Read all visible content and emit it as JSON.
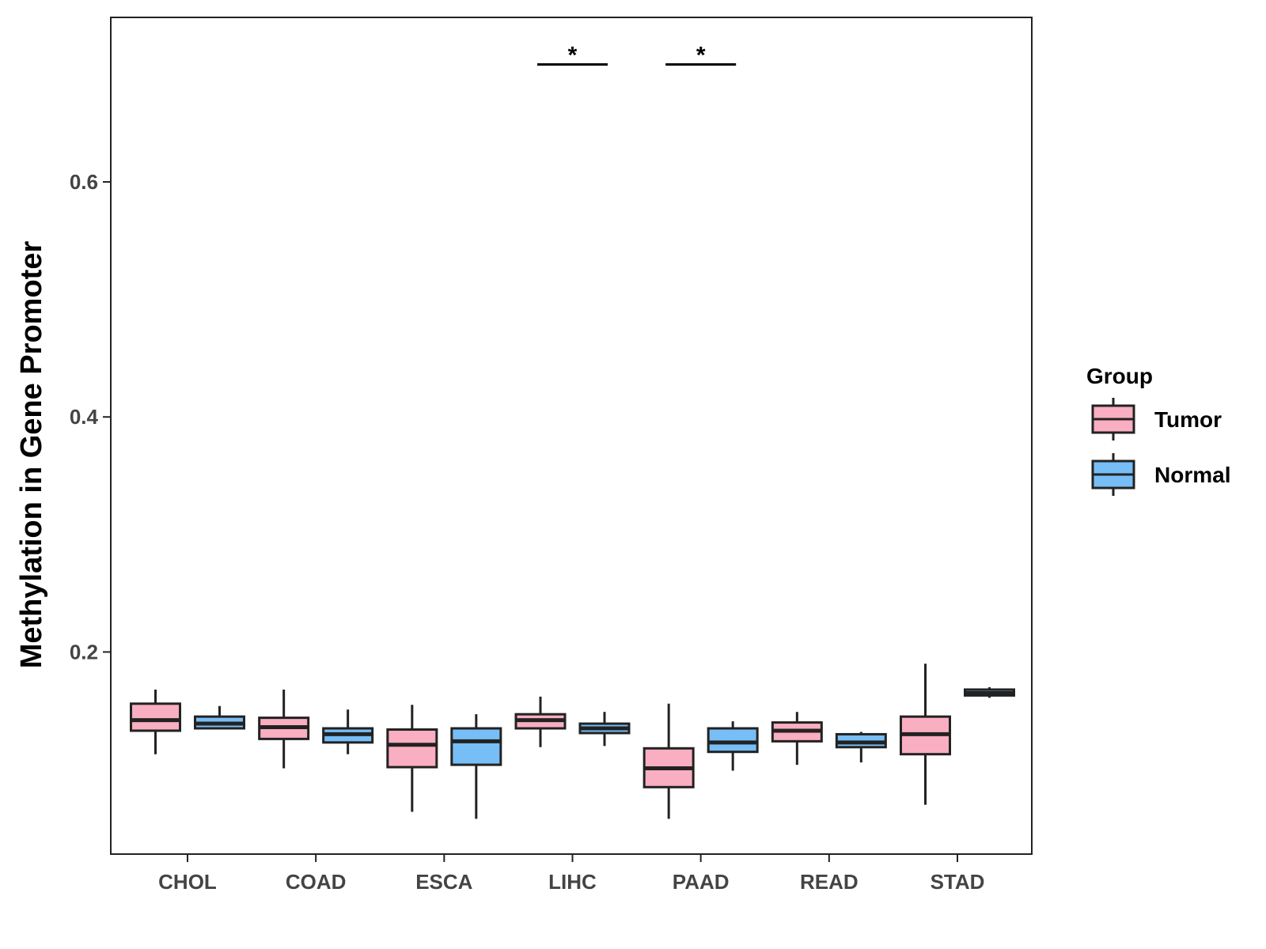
{
  "chart_data": {
    "type": "boxplot",
    "title": "",
    "xlabel": "",
    "ylabel": "Methylation in Gene Promoter",
    "ylim": [
      0.028,
      0.74
    ],
    "yticks": [
      0.2,
      0.4,
      0.6
    ],
    "ytick_labels": [
      "0.2",
      "0.4",
      "0.6"
    ],
    "categories": [
      "CHOL",
      "COAD",
      "ESCA",
      "LIHC",
      "PAAD",
      "READ",
      "STAD"
    ],
    "legend": {
      "title": "Group",
      "position": "right",
      "entries": [
        {
          "name": "Tumor",
          "color": "#F9AEC1"
        },
        {
          "name": "Normal",
          "color": "#77BEF7"
        }
      ]
    },
    "series": [
      {
        "name": "Tumor",
        "color": "#F9AEC1",
        "boxes": [
          {
            "min": 0.113,
            "q1": 0.133,
            "median": 0.142,
            "q3": 0.156,
            "max": 0.168
          },
          {
            "min": 0.101,
            "q1": 0.126,
            "median": 0.136,
            "q3": 0.144,
            "max": 0.168
          },
          {
            "min": 0.064,
            "q1": 0.102,
            "median": 0.121,
            "q3": 0.134,
            "max": 0.155
          },
          {
            "min": 0.119,
            "q1": 0.135,
            "median": 0.142,
            "q3": 0.147,
            "max": 0.162
          },
          {
            "min": 0.058,
            "q1": 0.085,
            "median": 0.101,
            "q3": 0.118,
            "max": 0.156
          },
          {
            "min": 0.104,
            "q1": 0.124,
            "median": 0.133,
            "q3": 0.14,
            "max": 0.149
          },
          {
            "min": 0.07,
            "q1": 0.113,
            "median": 0.13,
            "q3": 0.145,
            "max": 0.19
          }
        ]
      },
      {
        "name": "Normal",
        "color": "#77BEF7",
        "boxes": [
          {
            "min": 0.134,
            "q1": 0.135,
            "median": 0.139,
            "q3": 0.145,
            "max": 0.154
          },
          {
            "min": 0.113,
            "q1": 0.123,
            "median": 0.13,
            "q3": 0.135,
            "max": 0.151
          },
          {
            "min": 0.058,
            "q1": 0.104,
            "median": 0.124,
            "q3": 0.135,
            "max": 0.147
          },
          {
            "min": 0.12,
            "q1": 0.131,
            "median": 0.135,
            "q3": 0.139,
            "max": 0.149
          },
          {
            "min": 0.099,
            "q1": 0.115,
            "median": 0.123,
            "q3": 0.135,
            "max": 0.141
          },
          {
            "min": 0.106,
            "q1": 0.119,
            "median": 0.123,
            "q3": 0.13,
            "max": 0.132
          },
          {
            "min": 0.161,
            "q1": 0.163,
            "median": 0.165,
            "q3": 0.168,
            "max": 0.17
          }
        ]
      }
    ],
    "significance": [
      {
        "category": "LIHC",
        "label": "*",
        "y": 0.7
      },
      {
        "category": "PAAD",
        "label": "*",
        "y": 0.7
      }
    ]
  }
}
